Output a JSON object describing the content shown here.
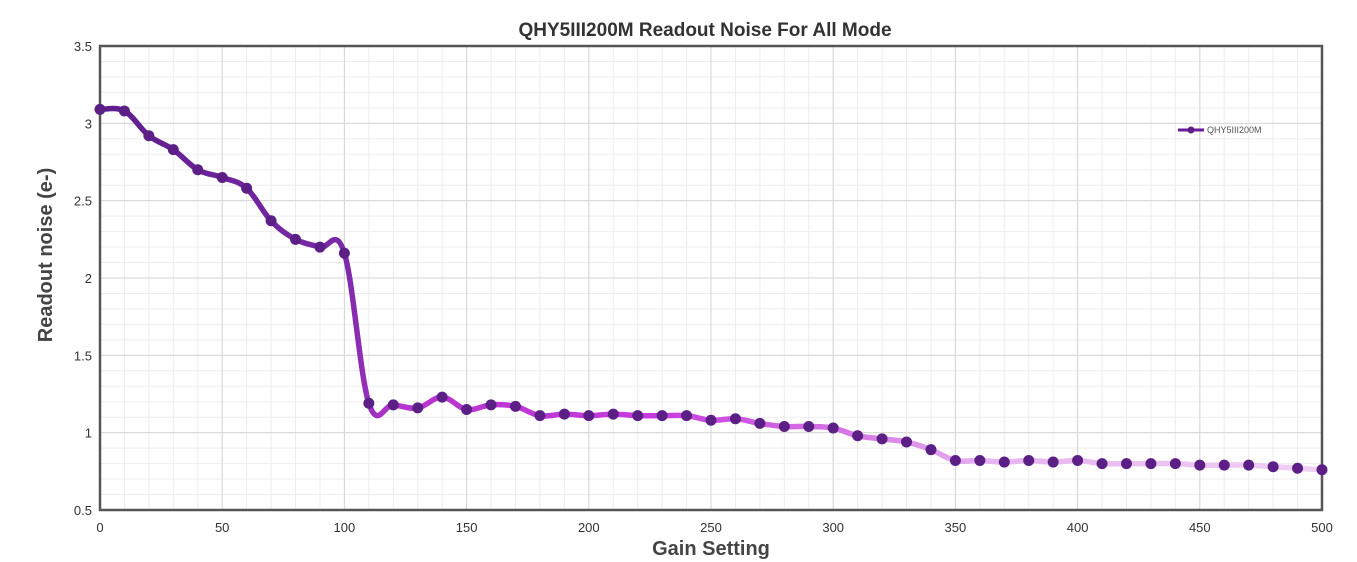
{
  "chart_data": {
    "type": "line",
    "title": "QHY5III200M Readout Noise For All Mode",
    "xlabel": "Gain Setting",
    "ylabel": "Readout noise (e-)",
    "xlim": [
      0,
      500
    ],
    "ylim": [
      0.5,
      3.5
    ],
    "xticks": [
      0,
      50,
      100,
      150,
      200,
      250,
      300,
      350,
      400,
      450,
      500
    ],
    "yticks": [
      0.5,
      1,
      1.5,
      2,
      2.5,
      3,
      3.5
    ],
    "ytick_labels": [
      "0.5",
      "1",
      "1.5",
      "2",
      "2.5",
      "3",
      "3.5"
    ],
    "grid": true,
    "legend_position": "top-right",
    "series": [
      {
        "name": "QHY5III200M",
        "color": "#6a1b9a",
        "marker_color": "#5b1f86",
        "x": [
          0,
          10,
          20,
          30,
          40,
          50,
          60,
          70,
          80,
          90,
          100,
          110,
          120,
          130,
          140,
          150,
          160,
          170,
          180,
          190,
          200,
          210,
          220,
          230,
          240,
          250,
          260,
          270,
          280,
          290,
          300,
          310,
          320,
          330,
          340,
          350,
          360,
          370,
          380,
          390,
          400,
          410,
          420,
          430,
          440,
          450,
          460,
          470,
          480,
          490,
          500
        ],
        "y": [
          3.09,
          3.08,
          2.92,
          2.83,
          2.7,
          2.65,
          2.58,
          2.37,
          2.25,
          2.2,
          2.16,
          1.19,
          1.18,
          1.16,
          1.23,
          1.15,
          1.18,
          1.17,
          1.11,
          1.12,
          1.11,
          1.12,
          1.11,
          1.11,
          1.11,
          1.08,
          1.09,
          1.06,
          1.04,
          1.04,
          1.03,
          0.98,
          0.96,
          0.94,
          0.89,
          0.82,
          0.82,
          0.81,
          0.82,
          0.81,
          0.82,
          0.8,
          0.8,
          0.8,
          0.8,
          0.79,
          0.79,
          0.79,
          0.78,
          0.77,
          0.76
        ]
      }
    ]
  }
}
